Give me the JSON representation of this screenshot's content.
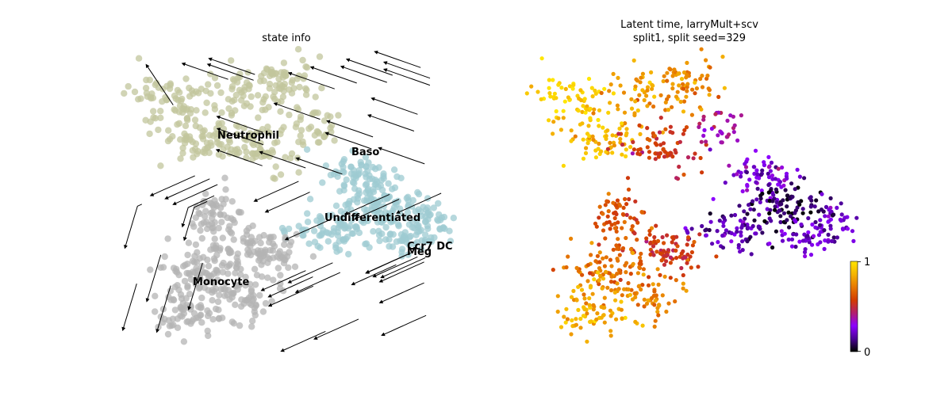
{
  "chart_data": [
    {
      "type": "scatter",
      "title": "state info",
      "xlabel": "",
      "ylabel": "",
      "grid": false,
      "legend": "on data",
      "colors": {
        "Neutrophil": "#c2c69c",
        "Baso": "#9ecbd2",
        "Undifferentiated": "#9ecbd2",
        "Ccr7 DC": "#9ecbd2",
        "Meg": "#9ecbd2",
        "Monocyte": "#b4b4b4",
        "streamlines": "#000000"
      },
      "cluster_labels": [
        "Neutrophil",
        "Baso",
        "Undifferentiated",
        "Ccr7 DC",
        "Meg",
        "Monocyte"
      ],
      "overlay": "velocity streamlines"
    },
    {
      "type": "scatter",
      "title_line1": "Latent time, larryMult+scv",
      "title_line2": "split1, split seed=329",
      "xlabel": "",
      "ylabel": "",
      "grid": false,
      "colormap": "gnuplot",
      "colorbar": {
        "min": 0,
        "max": 1,
        "tick_labels": [
          "0",
          "1"
        ],
        "placement": "bottom-right",
        "stops": [
          "#000000",
          "#4b0096",
          "#8c00ff",
          "#b21e6e",
          "#d23c00",
          "#e67800",
          "#f5b400",
          "#ffe600"
        ]
      }
    }
  ]
}
